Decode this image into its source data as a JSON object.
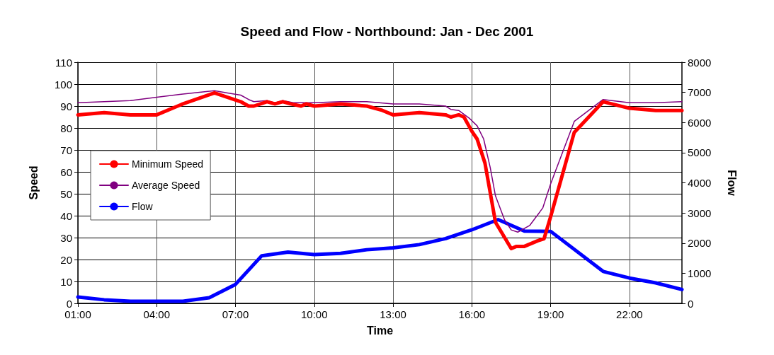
{
  "chart_data": {
    "type": "line",
    "title": "Speed and Flow - Northbound: Jan - Dec 2001",
    "xlabel": "Time",
    "ylabel": "Speed",
    "y2label": "Flow",
    "xlim": [
      1,
      24
    ],
    "xticks": [
      {
        "value": 1,
        "label": "01:00"
      },
      {
        "value": 4,
        "label": "04:00"
      },
      {
        "value": 7,
        "label": "07:00"
      },
      {
        "value": 10,
        "label": "10:00"
      },
      {
        "value": 13,
        "label": "13:00"
      },
      {
        "value": 16,
        "label": "16:00"
      },
      {
        "value": 19,
        "label": "19:00"
      },
      {
        "value": 22,
        "label": "22:00"
      }
    ],
    "ylim": [
      0,
      110
    ],
    "yticks": [
      0,
      10,
      20,
      30,
      40,
      50,
      60,
      70,
      80,
      90,
      100,
      110
    ],
    "y2lim": [
      0,
      8000
    ],
    "y2ticks": [
      0,
      1000,
      2000,
      3000,
      4000,
      5000,
      6000,
      7000,
      8000
    ],
    "grid": true,
    "legend": "left",
    "marker": "none",
    "line_style": "solid",
    "series": [
      {
        "name": "Minimum Speed",
        "color": "#ff0000",
        "x": [
          1,
          2,
          3,
          4,
          5,
          6.2,
          7.2,
          7.5,
          7.7,
          8.2,
          8.5,
          8.8,
          9.1,
          9.5,
          9.7,
          10,
          11,
          12,
          12.6,
          13,
          14,
          15,
          15.2,
          15.5,
          15.7,
          16,
          16.2,
          16.5,
          16.9,
          17.5,
          17.7,
          18,
          18.5,
          18.75,
          19,
          19.9,
          21,
          22,
          23,
          24
        ],
        "values": [
          86,
          87,
          86,
          86,
          91,
          96,
          92,
          90,
          90,
          92,
          91,
          92,
          91,
          90,
          91,
          90,
          91,
          90,
          88,
          86,
          87,
          86,
          85,
          86,
          85,
          78.5,
          75,
          64,
          37,
          25,
          26,
          26,
          28.5,
          29.5,
          39.5,
          78,
          92,
          89,
          88,
          88
        ]
      },
      {
        "name": "Average Speed",
        "color": "#800080",
        "x": [
          1,
          2,
          3,
          4,
          5,
          6.2,
          6.7,
          7.2,
          7.5,
          7.7,
          8.2,
          8.5,
          8.8,
          9.2,
          10,
          11,
          12,
          13,
          14,
          15,
          15.2,
          15.5,
          15.9,
          16.2,
          16.45,
          16.7,
          16.9,
          17.25,
          17.5,
          17.75,
          18.2,
          18.7,
          19,
          19.9,
          21,
          22,
          23,
          24
        ],
        "values": [
          91.5,
          92,
          92.5,
          94,
          95.5,
          97,
          96,
          95,
          93,
          92,
          92.5,
          91.5,
          92.5,
          91.5,
          91.5,
          92,
          92,
          91,
          91,
          90,
          88.5,
          88,
          84.5,
          81,
          75,
          62,
          49,
          38,
          33.5,
          32.5,
          35.5,
          43.5,
          54.5,
          83,
          93,
          91.5,
          91.5,
          92
        ]
      },
      {
        "name": "Flow",
        "color": "#0000ff",
        "axis": "y2",
        "x": [
          1,
          2,
          3,
          4,
          5,
          6,
          7,
          8,
          9,
          10,
          11,
          12,
          13,
          14,
          15,
          16,
          17,
          18,
          19,
          21,
          22,
          23,
          24
        ],
        "values": [
          210,
          120,
          70,
          70,
          70,
          190,
          630,
          1580,
          1700,
          1620,
          1660,
          1780,
          1840,
          1950,
          2150,
          2440,
          2780,
          2400,
          2390,
          1060,
          840,
          680,
          460
        ]
      }
    ]
  }
}
